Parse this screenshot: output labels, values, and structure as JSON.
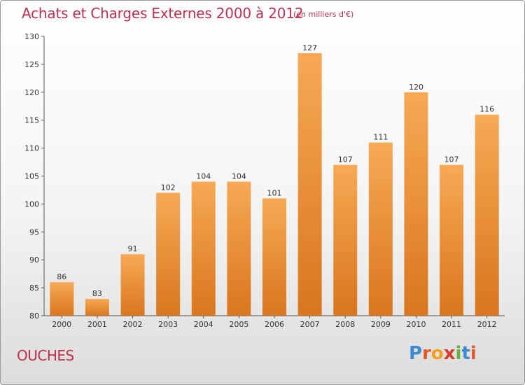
{
  "header": {
    "title": "Achats et Charges Externes 2000 à 2012",
    "unit": "(en milliers d'€)"
  },
  "footer": {
    "place": "OUCHES",
    "logo_letters": [
      "P",
      "r",
      "o",
      "x",
      "i",
      "t",
      "i"
    ],
    "logo_colors": [
      "#3e8ad1",
      "#e05a2a",
      "#f0a020",
      "#d9392b",
      "#63b53a",
      "#3e8ad1",
      "#e05a2a"
    ]
  },
  "chart_data": {
    "type": "bar",
    "title": "Achats et Charges Externes 2000 à 2012",
    "subtitle": "(en milliers d'€)",
    "categories": [
      "2000",
      "2001",
      "2002",
      "2003",
      "2004",
      "2005",
      "2006",
      "2007",
      "2008",
      "2009",
      "2010",
      "2011",
      "2012"
    ],
    "values": [
      86,
      83,
      91,
      102,
      104,
      104,
      101,
      127,
      107,
      111,
      120,
      107,
      116
    ],
    "ylim": [
      80,
      130
    ],
    "yticks": [
      80,
      85,
      90,
      95,
      100,
      105,
      110,
      115,
      120,
      125,
      130
    ],
    "grid": false,
    "bar_color": "#f0953a",
    "bar_color_light": "#f7a955",
    "bar_color_dark": "#d9761e"
  }
}
